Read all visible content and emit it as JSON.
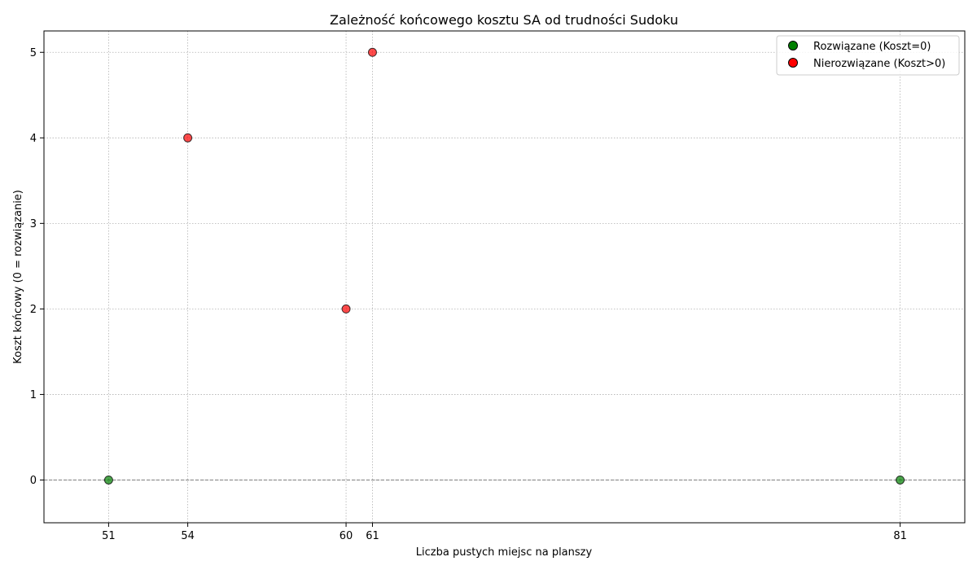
{
  "chart_data": {
    "type": "scatter",
    "title": "Zależność końcowego kosztu SA od trudności Sudoku",
    "xlabel": "Liczba pustych miejsc na planszy",
    "ylabel": "Koszt końcowy (0 = rozwiązanie)",
    "xlim": [
      48.55,
      83.45
    ],
    "ylim": [
      -0.5,
      5.25
    ],
    "x_ticks": [
      51,
      54,
      60,
      61,
      81
    ],
    "y_ticks": [
      0,
      1,
      2,
      3,
      4,
      5
    ],
    "grid": true,
    "reference_line_y": 0,
    "legend_position": "top-right",
    "series": [
      {
        "name": "Rozwiązane (Koszt=0)",
        "color": "#008000",
        "points": [
          {
            "x": 51,
            "y": 0
          },
          {
            "x": 81,
            "y": 0
          }
        ]
      },
      {
        "name": "Nierozwiązane (Koszt>0)",
        "color": "#ff0000",
        "points": [
          {
            "x": 54,
            "y": 4
          },
          {
            "x": 60,
            "y": 2
          },
          {
            "x": 61,
            "y": 5
          }
        ]
      }
    ]
  }
}
